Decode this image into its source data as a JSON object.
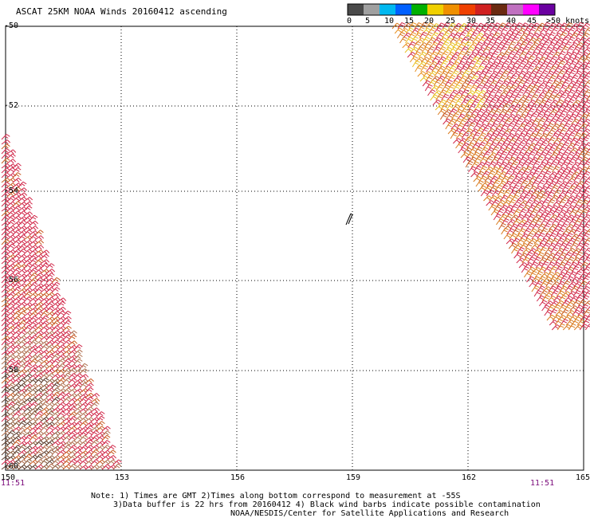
{
  "title": "ASCAT 25KM NOAA Winds 20160412 ascending",
  "legend": {
    "labels": [
      "0",
      "5",
      "10",
      "15",
      "20",
      "25",
      "30",
      "35",
      "40",
      "45",
      ">50 knots"
    ],
    "colors": [
      "#4a4a4a",
      "#a0a0a0",
      "#00b8f0",
      "#0060ff",
      "#00b000",
      "#f0d000",
      "#f09000",
      "#f04000",
      "#d02020",
      "#6a2a10",
      "#c070c0",
      "#ff00ff",
      "#6a00a0"
    ]
  },
  "axes": {
    "lat_labels": [
      "-50",
      "-52",
      "-54",
      "-56",
      "-58",
      "-60"
    ],
    "lon_labels": [
      "150",
      "153",
      "156",
      "159",
      "162",
      "165"
    ]
  },
  "time_labels": {
    "left": "11:51",
    "right": "11:51"
  },
  "notes": [
    "Note: 1) Times are GMT 2)Times along bottom correspond to measurement at -55S",
    "3)Data buffer is 22 hrs from 20160412 4) Black wind barbs indicate possible contamination",
    "NOAA/NESDIS/Center for Satellite Applications and Research"
  ]
}
